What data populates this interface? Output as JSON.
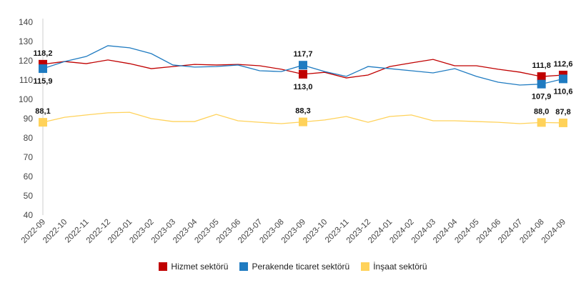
{
  "chart_data": {
    "type": "line",
    "title": "",
    "xlabel": "",
    "ylabel": "",
    "ylim": [
      40,
      140
    ],
    "yticks": [
      40,
      50,
      60,
      70,
      80,
      90,
      100,
      110,
      120,
      130,
      140
    ],
    "grid": false,
    "legend": "bottom",
    "categories": [
      "2022-09",
      "2022-10",
      "2022-11",
      "2022-12",
      "2023-01",
      "2023-02",
      "2023-03",
      "2023-04",
      "2023-05",
      "2023-06",
      "2023-07",
      "2023-08",
      "2023-09",
      "2023-10",
      "2023-11",
      "2023-12",
      "2024-01",
      "2024-02",
      "2024-03",
      "2024-04",
      "2024-05",
      "2024-06",
      "2024-07",
      "2024-08",
      "2024-09"
    ],
    "series": [
      {
        "name": "Hizmet sektörü",
        "color": "#c00000",
        "values": [
          118.2,
          119.6,
          118.5,
          120.4,
          118.5,
          115.9,
          117.0,
          118.1,
          117.8,
          118.1,
          117.4,
          115.6,
          113.0,
          114.0,
          111.1,
          112.6,
          117.0,
          118.9,
          120.7,
          117.4,
          117.4,
          115.6,
          114.1,
          111.8,
          112.6
        ],
        "labels": [
          {
            "index": 0,
            "text": "118,2",
            "pos": "above"
          },
          {
            "index": 12,
            "text": "113,0",
            "pos": "below"
          },
          {
            "index": 23,
            "text": "111,8",
            "pos": "above"
          },
          {
            "index": 24,
            "text": "112,6",
            "pos": "above"
          }
        ]
      },
      {
        "name": "Perakende ticaret sektörü",
        "color": "#1f7bc1",
        "values": [
          115.9,
          119.6,
          122.2,
          127.8,
          126.7,
          123.7,
          117.8,
          116.7,
          117.0,
          117.8,
          114.8,
          114.4,
          117.7,
          114.4,
          111.9,
          117.0,
          115.9,
          114.8,
          113.7,
          115.9,
          111.9,
          108.9,
          107.4,
          107.9,
          110.6
        ],
        "labels": [
          {
            "index": 0,
            "text": "115,9",
            "pos": "below"
          },
          {
            "index": 12,
            "text": "117,7",
            "pos": "above"
          },
          {
            "index": 23,
            "text": "107,9",
            "pos": "below"
          },
          {
            "index": 24,
            "text": "110,6",
            "pos": "below"
          }
        ]
      },
      {
        "name": "İnşaat sektörü",
        "color": "#ffd25a",
        "values": [
          88.1,
          90.7,
          91.9,
          93.0,
          93.3,
          90.0,
          88.5,
          88.5,
          92.2,
          88.9,
          88.1,
          87.4,
          88.3,
          89.3,
          91.1,
          88.1,
          91.1,
          91.9,
          88.9,
          88.9,
          88.5,
          88.1,
          87.4,
          88.0,
          87.8
        ],
        "labels": [
          {
            "index": 0,
            "text": "88,1",
            "pos": "above"
          },
          {
            "index": 12,
            "text": "88,3",
            "pos": "above"
          },
          {
            "index": 23,
            "text": "88,0",
            "pos": "above"
          },
          {
            "index": 24,
            "text": "87,8",
            "pos": "above"
          }
        ]
      }
    ]
  }
}
